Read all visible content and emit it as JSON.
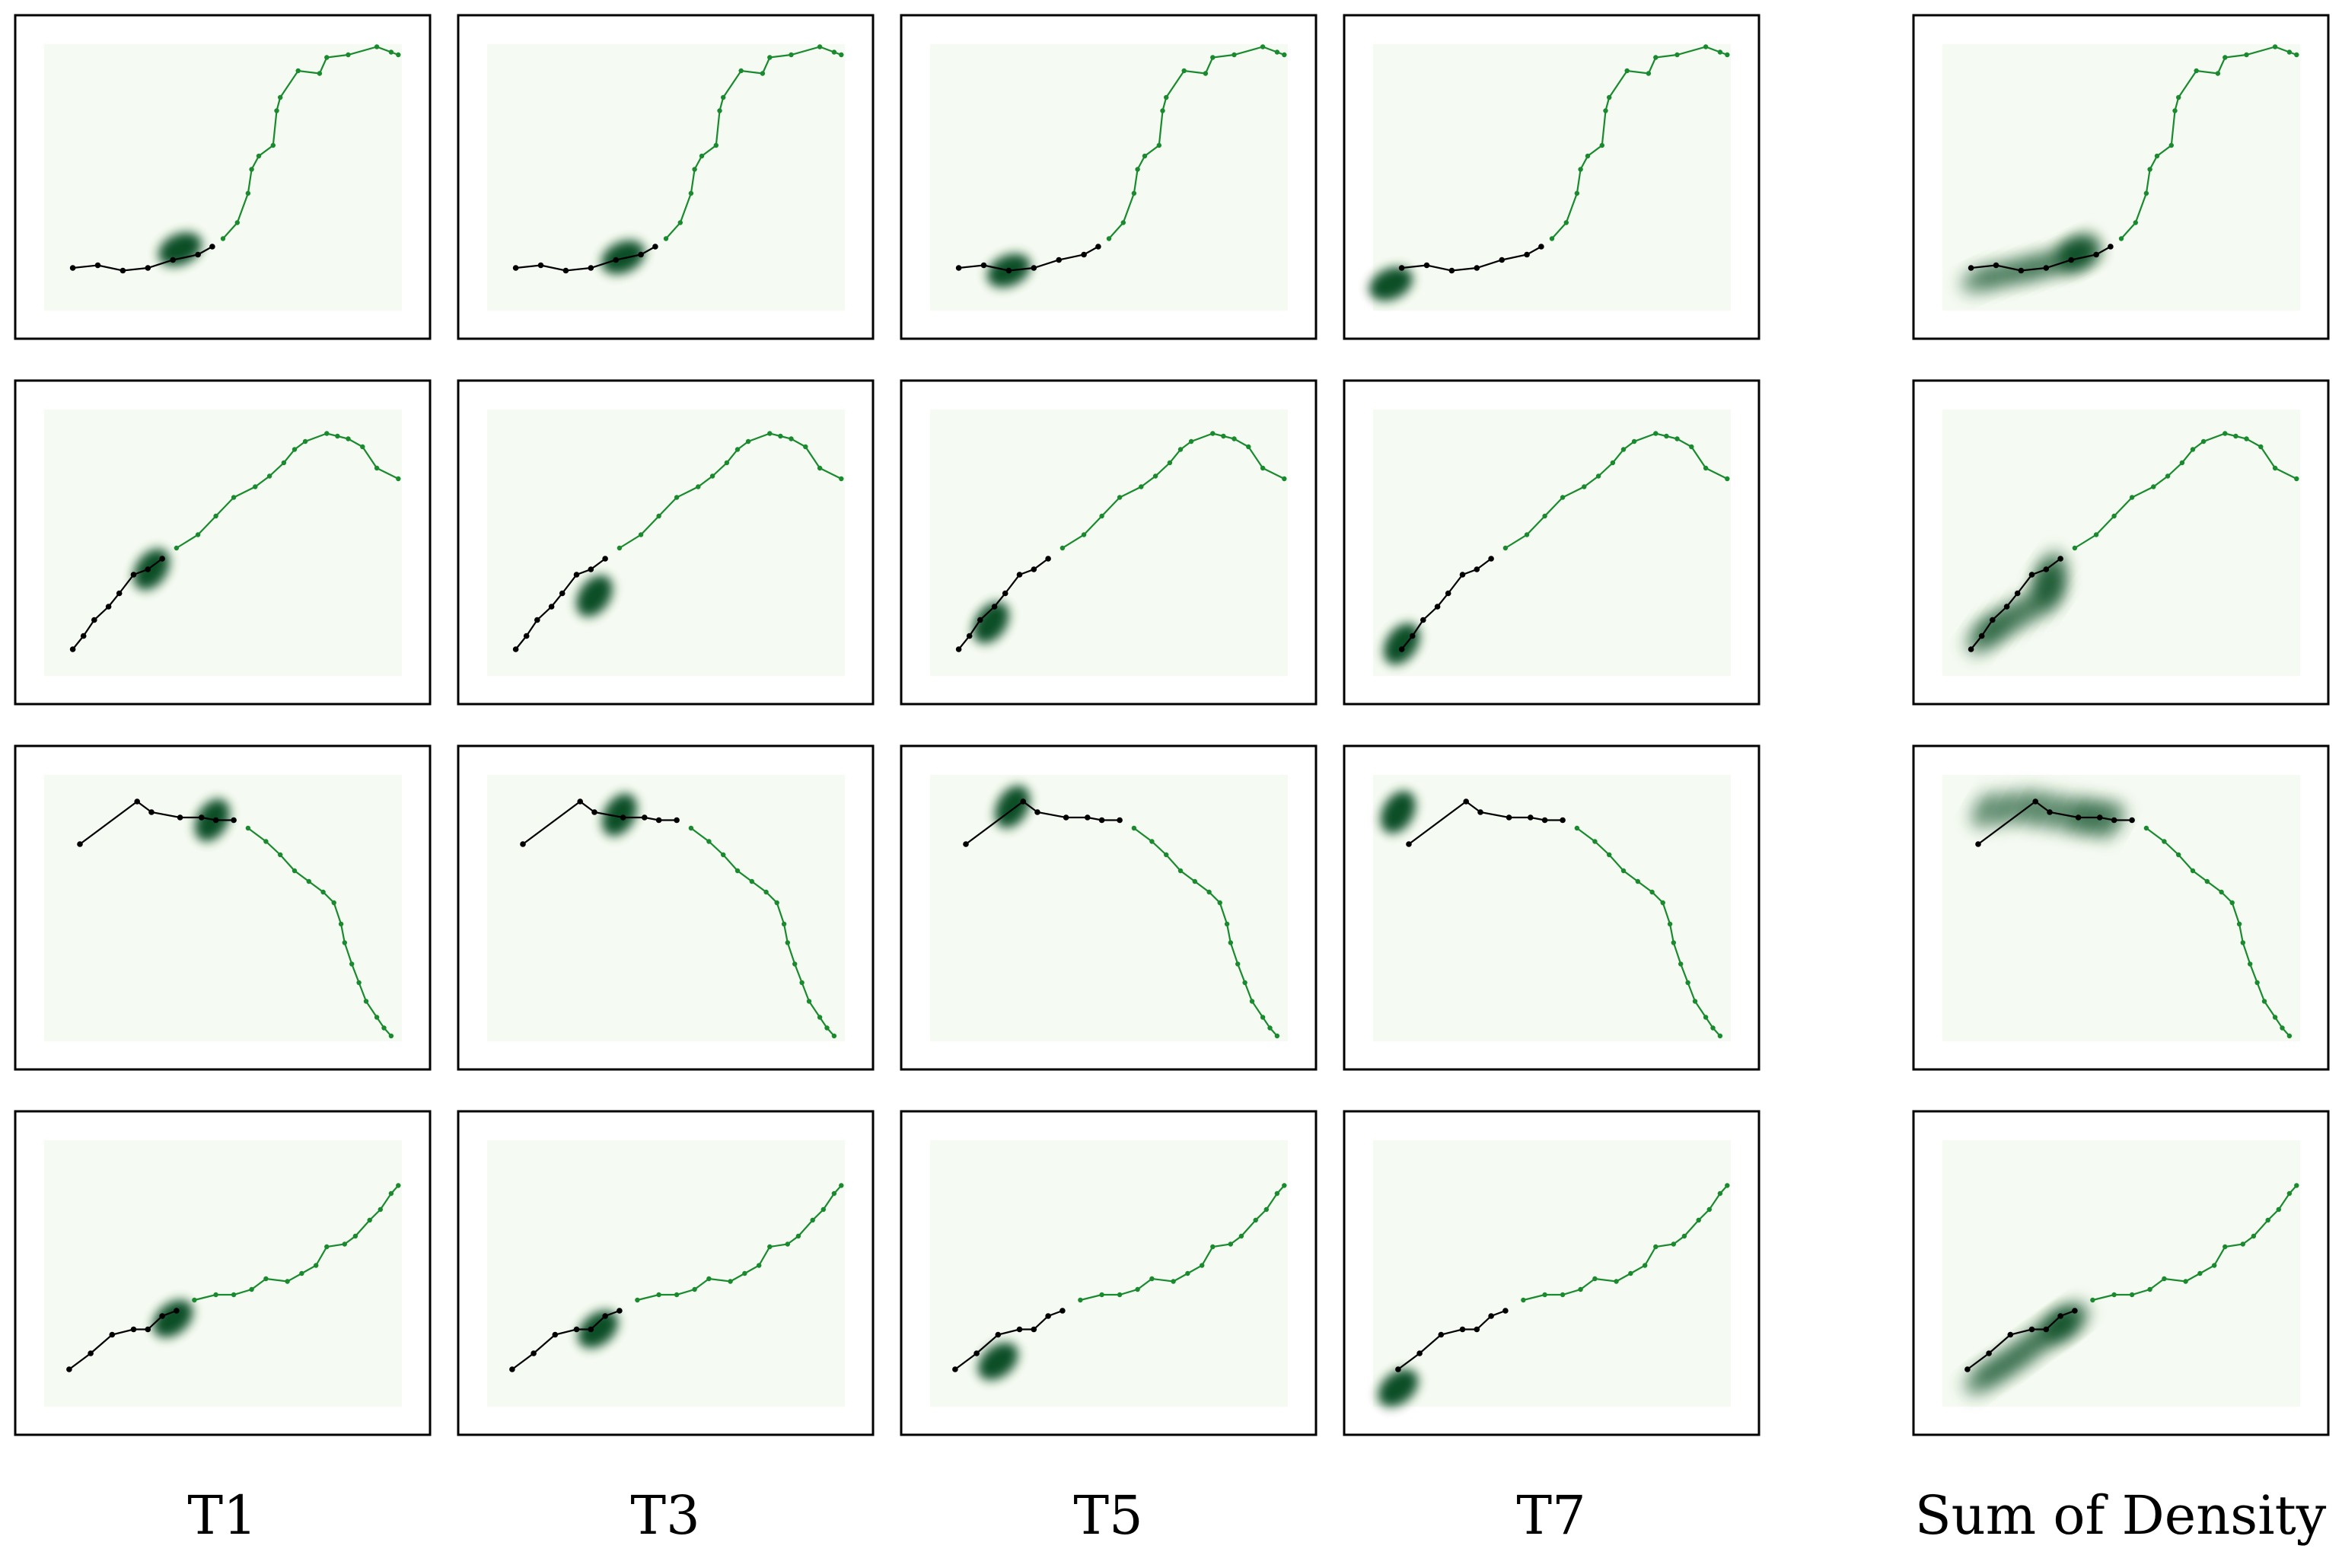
{
  "column_labels": [
    "T1",
    "T3",
    "T5",
    "T7",
    "Sum of Density"
  ],
  "colors": {
    "background_fill": "#f5fbf2",
    "observed_path": "#000000",
    "future_path": "#1a8a2e",
    "density_dark": "#00441b",
    "density_light": "#74c476",
    "frame": "#000000"
  },
  "trajectories": [
    {
      "name": "row-1",
      "observed": [
        [
          0.08,
          0.16
        ],
        [
          0.15,
          0.17
        ],
        [
          0.22,
          0.15
        ],
        [
          0.29,
          0.16
        ],
        [
          0.36,
          0.19
        ],
        [
          0.43,
          0.21
        ],
        [
          0.47,
          0.24
        ]
      ],
      "future": [
        [
          0.5,
          0.27
        ],
        [
          0.54,
          0.33
        ],
        [
          0.57,
          0.44
        ],
        [
          0.58,
          0.53
        ],
        [
          0.6,
          0.58
        ],
        [
          0.64,
          0.62
        ],
        [
          0.65,
          0.75
        ],
        [
          0.66,
          0.8
        ],
        [
          0.71,
          0.9
        ],
        [
          0.77,
          0.89
        ],
        [
          0.79,
          0.95
        ],
        [
          0.85,
          0.96
        ],
        [
          0.93,
          0.99
        ],
        [
          0.97,
          0.97
        ],
        [
          0.99,
          0.96
        ]
      ],
      "density_center": [
        [
          0.38,
          0.23
        ],
        [
          0.38,
          0.2
        ],
        [
          0.22,
          0.15
        ],
        [
          0.05,
          0.1
        ]
      ]
    },
    {
      "name": "row-2",
      "observed": [
        [
          0.08,
          0.1
        ],
        [
          0.11,
          0.15
        ],
        [
          0.14,
          0.21
        ],
        [
          0.18,
          0.26
        ],
        [
          0.21,
          0.31
        ],
        [
          0.25,
          0.38
        ],
        [
          0.29,
          0.4
        ],
        [
          0.33,
          0.44
        ]
      ],
      "future": [
        [
          0.37,
          0.48
        ],
        [
          0.43,
          0.53
        ],
        [
          0.48,
          0.6
        ],
        [
          0.53,
          0.67
        ],
        [
          0.59,
          0.71
        ],
        [
          0.63,
          0.75
        ],
        [
          0.67,
          0.8
        ],
        [
          0.7,
          0.85
        ],
        [
          0.73,
          0.88
        ],
        [
          0.79,
          0.91
        ],
        [
          0.82,
          0.9
        ],
        [
          0.85,
          0.89
        ],
        [
          0.89,
          0.86
        ],
        [
          0.93,
          0.78
        ],
        [
          0.99,
          0.74
        ]
      ],
      "density_center": [
        [
          0.3,
          0.4
        ],
        [
          0.3,
          0.3
        ],
        [
          0.17,
          0.2
        ],
        [
          0.08,
          0.12
        ]
      ]
    },
    {
      "name": "row-3",
      "observed": [
        [
          0.1,
          0.74
        ],
        [
          0.26,
          0.9
        ],
        [
          0.3,
          0.86
        ],
        [
          0.38,
          0.84
        ],
        [
          0.44,
          0.84
        ],
        [
          0.48,
          0.83
        ],
        [
          0.53,
          0.83
        ]
      ],
      "future": [
        [
          0.57,
          0.8
        ],
        [
          0.62,
          0.75
        ],
        [
          0.66,
          0.7
        ],
        [
          0.7,
          0.64
        ],
        [
          0.74,
          0.6
        ],
        [
          0.78,
          0.56
        ],
        [
          0.81,
          0.52
        ],
        [
          0.83,
          0.44
        ],
        [
          0.84,
          0.37
        ],
        [
          0.86,
          0.29
        ],
        [
          0.88,
          0.22
        ],
        [
          0.9,
          0.15
        ],
        [
          0.93,
          0.09
        ],
        [
          0.95,
          0.05
        ],
        [
          0.97,
          0.02
        ]
      ],
      "density_center": [
        [
          0.47,
          0.83
        ],
        [
          0.37,
          0.85
        ],
        [
          0.23,
          0.88
        ],
        [
          0.07,
          0.86
        ]
      ]
    },
    {
      "name": "row-4",
      "observed": [
        [
          0.07,
          0.14
        ],
        [
          0.13,
          0.2
        ],
        [
          0.19,
          0.27
        ],
        [
          0.25,
          0.29
        ],
        [
          0.29,
          0.29
        ],
        [
          0.33,
          0.34
        ],
        [
          0.37,
          0.36
        ]
      ],
      "future": [
        [
          0.42,
          0.4
        ],
        [
          0.48,
          0.42
        ],
        [
          0.53,
          0.42
        ],
        [
          0.58,
          0.44
        ],
        [
          0.62,
          0.48
        ],
        [
          0.68,
          0.47
        ],
        [
          0.72,
          0.5
        ],
        [
          0.76,
          0.53
        ],
        [
          0.79,
          0.6
        ],
        [
          0.84,
          0.61
        ],
        [
          0.87,
          0.64
        ],
        [
          0.91,
          0.7
        ],
        [
          0.94,
          0.74
        ],
        [
          0.97,
          0.8
        ],
        [
          0.99,
          0.83
        ]
      ],
      "density_center": [
        [
          0.36,
          0.33
        ],
        [
          0.31,
          0.29
        ],
        [
          0.19,
          0.17
        ],
        [
          0.07,
          0.07
        ]
      ]
    }
  ]
}
